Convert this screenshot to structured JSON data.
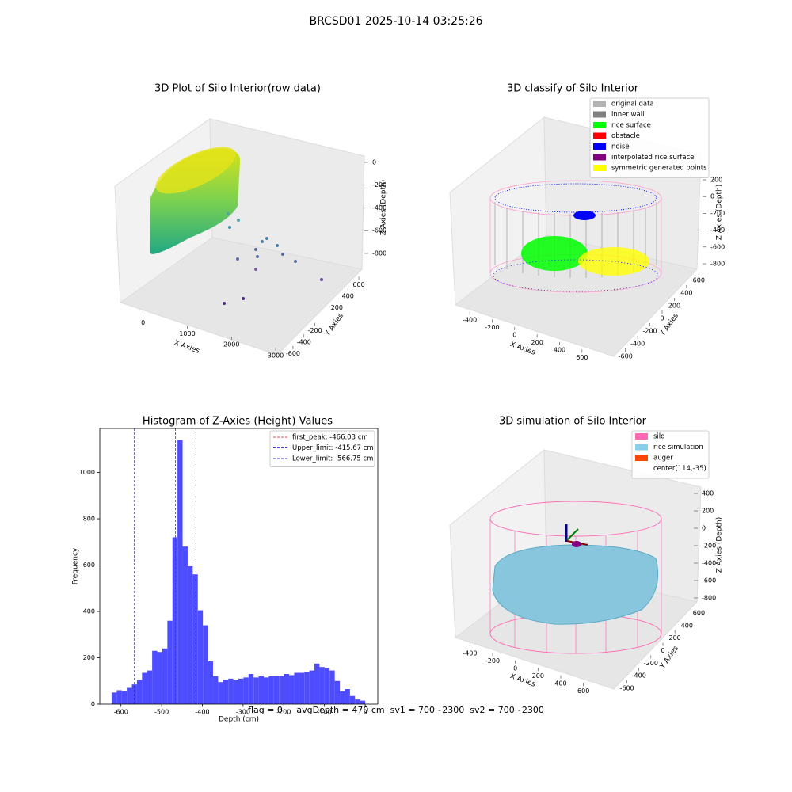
{
  "suptitle": "BRCSD01 2025-10-14 03:25:26",
  "footer": "flag = 0     avgDepth = 470 cm  sv1 = 700~2300  sv2 = 700~2300",
  "chart_data": [
    {
      "type": "scatter3d",
      "title": "3D Plot of Silo Interior(row data)",
      "xlabel": "X Axies",
      "ylabel": "Y Axies",
      "zlabel": "Z Axies (Depth)",
      "xlim": [
        -550,
        3070
      ],
      "xticks": [
        0,
        1000,
        2000,
        3000
      ],
      "ylim": [
        -700,
        700
      ],
      "yticks": [
        -600,
        -400,
        -200,
        200,
        400,
        600
      ],
      "zlim": [
        -950,
        100
      ],
      "zticks": [
        -800,
        -600,
        -400,
        -200,
        0
      ]
    },
    {
      "type": "scatter3d",
      "title": "3D classify of Silo Interior",
      "xlabel": "X Axies",
      "ylabel": "Y Axies",
      "zlabel": "Z Axies (Depth)",
      "xlim": [
        -500,
        700
      ],
      "xticks": [
        -400,
        -200,
        0,
        200,
        400,
        600
      ],
      "ylim": [
        -700,
        700
      ],
      "yticks": [
        -600,
        -400,
        -200,
        0,
        200,
        400,
        600
      ],
      "zlim": [
        -900,
        300
      ],
      "zticks": [
        -800,
        -600,
        -400,
        -200,
        0,
        200
      ],
      "legend_loc": "upper right",
      "legend": [
        {
          "name": "original data",
          "color": "#b3b3b3"
        },
        {
          "name": "inner wall",
          "color": "#808080"
        },
        {
          "name": "rice surface",
          "color": "#00ff00"
        },
        {
          "name": "obstacle",
          "color": "#ff0000"
        },
        {
          "name": "noise",
          "color": "#0000ff"
        },
        {
          "name": "interpolated rice surface",
          "color": "#800080"
        },
        {
          "name": "symmetric generated points",
          "color": "#ffff00"
        }
      ]
    },
    {
      "type": "hist",
      "title": "Histogram of Z-Axies (Height) Values",
      "xlabel": "Depth (cm)",
      "ylabel": "Frequency",
      "color": "#4d4dff",
      "bins": [
        -623.0,
        -610.54,
        -598.08,
        -585.62,
        -573.16,
        -560.7,
        -548.24,
        -535.78,
        -523.32,
        -510.86,
        -498.4,
        -485.94,
        -473.48,
        -461.02,
        -448.56,
        -436.1,
        -423.64,
        -411.18,
        -398.72,
        -386.26,
        -373.8,
        -361.34,
        -348.88,
        -336.42,
        -323.96,
        -311.5,
        -299.04,
        -286.58,
        -274.12,
        -261.66,
        -249.2,
        -236.74,
        -224.28,
        -211.82,
        -199.36,
        -186.9,
        -174.44,
        -161.98,
        -149.52,
        -137.06,
        -124.6,
        -112.14,
        -99.68,
        -87.22,
        -74.76,
        -62.3,
        -49.84,
        -37.38,
        -24.92,
        -12.46,
        0.0
      ],
      "counts": [
        50,
        60,
        55,
        70,
        85,
        105,
        135,
        145,
        230,
        225,
        240,
        360,
        720,
        1140,
        680,
        595,
        560,
        405,
        340,
        185,
        120,
        95,
        105,
        110,
        105,
        110,
        115,
        130,
        115,
        120,
        115,
        120,
        120,
        120,
        130,
        125,
        135,
        135,
        140,
        145,
        175,
        160,
        155,
        145,
        100,
        55,
        65,
        35,
        20,
        15
      ],
      "xlim": [
        -652,
        31
      ],
      "xticks": [
        -600,
        -500,
        -400,
        -300,
        -200,
        -100,
        0
      ],
      "ylim": [
        0,
        1190
      ],
      "yticks": [
        0,
        200,
        400,
        600,
        800,
        1000
      ],
      "legend_loc": "upper right",
      "vlines": [
        {
          "value": -466.03,
          "label": "first_peak: -466.03 cm",
          "color": "#ff0000"
        },
        {
          "value": -415.67,
          "label": "Upper_limit: -415.67 cm",
          "color": "#0000ff"
        },
        {
          "value": -566.75,
          "label": "Lower_limit: -566.75 cm",
          "color": "#0000ff"
        }
      ]
    },
    {
      "type": "surface3d",
      "title": "3D simulation of Silo Interior",
      "xlabel": "X Axies",
      "ylabel": "Y Axies",
      "zlabel": "Z Axies (Depth)",
      "xlim": [
        -500,
        700
      ],
      "xticks": [
        -400,
        -200,
        0,
        200,
        400,
        600
      ],
      "ylim": [
        -700,
        700
      ],
      "yticks": [
        -600,
        -400,
        -200,
        0,
        200,
        400,
        600
      ],
      "zlim": [
        -900,
        500
      ],
      "zticks": [
        -800,
        -600,
        -400,
        -200,
        0,
        200,
        400
      ],
      "legend_loc": "upper right",
      "legend": [
        {
          "name": "silo",
          "color": "#ff69b4"
        },
        {
          "name": "rice simulation",
          "color": "#87ceeb"
        },
        {
          "name": "auger",
          "color": "#ff4500"
        },
        {
          "name": "center(114,-35)"
        }
      ]
    }
  ]
}
